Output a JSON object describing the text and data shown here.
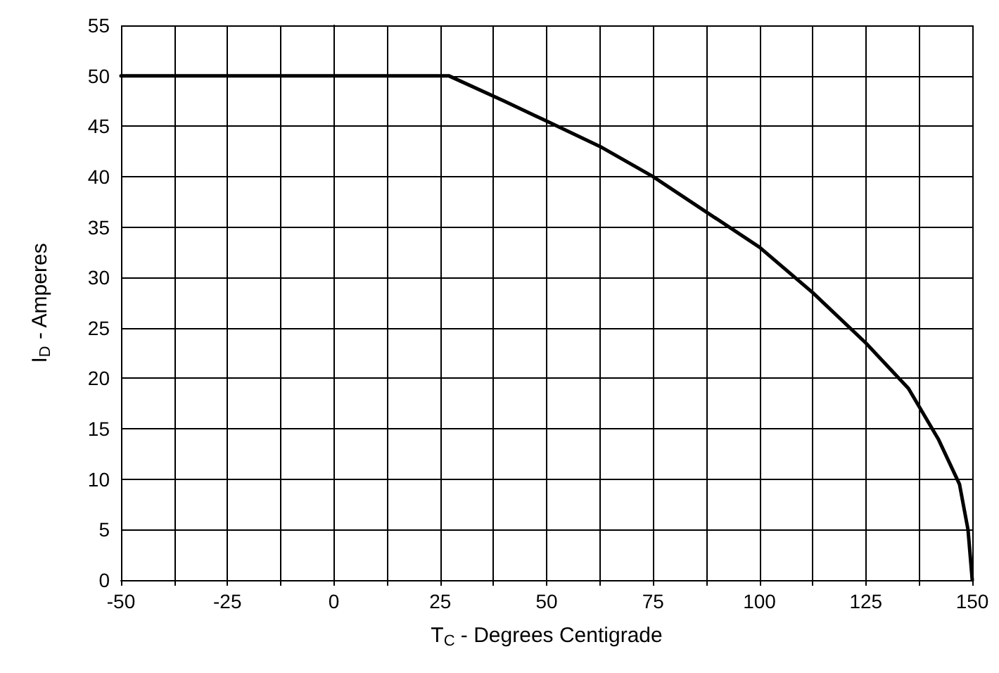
{
  "chart_data": {
    "type": "line",
    "xlabel": "T$_{C}$ - Degrees Centigrade",
    "ylabel": "I$_{D}$ - Amperes",
    "xlim": [
      -50,
      150
    ],
    "ylim": [
      0,
      55
    ],
    "xticks": [
      -50,
      {
        "value": -37.5,
        "label": null
      },
      -25,
      {
        "value": -12.5,
        "label": null
      },
      0,
      {
        "value": 12.5,
        "label": null
      },
      25,
      {
        "value": 37.5,
        "label": null
      },
      50,
      {
        "value": 62.5,
        "label": null
      },
      75,
      {
        "value": 87.5,
        "label": null
      },
      100,
      {
        "value": 112.5,
        "label": null
      },
      125,
      {
        "value": 137.5,
        "label": null
      },
      150
    ],
    "yticks": [
      0,
      5,
      10,
      15,
      20,
      25,
      30,
      35,
      40,
      45,
      50,
      55
    ],
    "grid": true,
    "marker": "none",
    "line_style": "solid",
    "series": [
      {
        "color": "#000000",
        "x": [
          -50,
          27,
          40,
          50,
          62.5,
          75,
          87.5,
          100,
          112.5,
          125,
          135,
          142,
          147,
          149,
          150
        ],
        "values": [
          50,
          50,
          47.5,
          45.5,
          43,
          40,
          36.5,
          33,
          28.5,
          23.5,
          19,
          14,
          9.5,
          5,
          0
        ]
      }
    ]
  }
}
